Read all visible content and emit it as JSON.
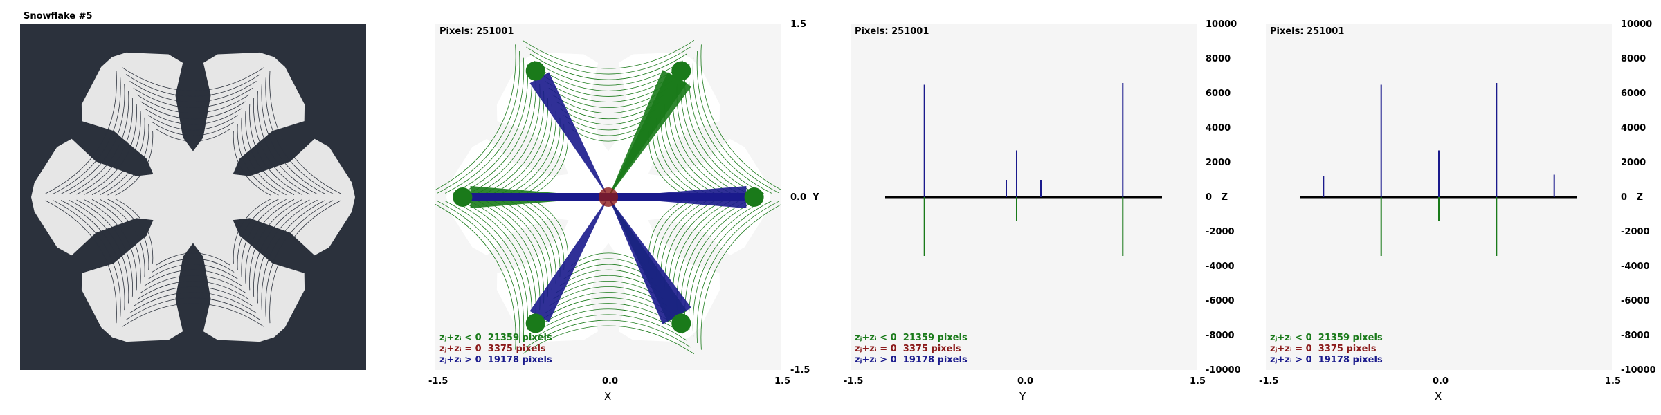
{
  "window": {
    "title": "Snowflake #5"
  },
  "colors": {
    "negative": "#1a7a1a",
    "zero": "#8b1a1a",
    "positive": "#1a1a8c",
    "background": "#2b313c",
    "panel": "#f5f5f5",
    "snowflake": "#e6e6e6"
  },
  "legend": [
    {
      "label": "zⱼ+zᵢ < 0",
      "count": "21359 pixels",
      "color": "#1a7a1a"
    },
    {
      "label": "zⱼ+zᵢ = 0",
      "count": "3375 pixels",
      "color": "#8b1a1a"
    },
    {
      "label": "zⱼ+zᵢ > 0",
      "count": "19178 pixels",
      "color": "#1a1a8c"
    }
  ],
  "panels": [
    {
      "pixels": "Pixels: 251001",
      "xaxis": "X",
      "side_label": "Y",
      "bottom_ticks": [
        "-1.5",
        "0.0",
        "1.5"
      ],
      "right_ticks": [
        "1.5",
        "0.0",
        "-1.5"
      ]
    },
    {
      "pixels": "Pixels: 251001",
      "xaxis": "Y",
      "side_label": "Z",
      "bottom_ticks": [
        "-1.5",
        "0.0",
        "1.5"
      ],
      "right_ticks": [
        "10000",
        "8000",
        "6000",
        "4000",
        "2000",
        "0",
        "-2000",
        "-4000",
        "-6000",
        "-8000",
        "-10000"
      ]
    },
    {
      "pixels": "Pixels: 251001",
      "xaxis": "X",
      "side_label": "Z",
      "bottom_ticks": [
        "-1.5",
        "0.0",
        "1.5"
      ],
      "right_ticks": [
        "10000",
        "8000",
        "6000",
        "4000",
        "2000",
        "0",
        "-2000",
        "-4000",
        "-6000",
        "-8000",
        "-10000"
      ]
    }
  ],
  "chart_data": [
    {
      "type": "scatter",
      "xlim": [
        -1.5,
        1.5
      ],
      "ylim": [
        -1.5,
        1.5
      ]
    },
    {
      "type": "line",
      "xlim": [
        -1.5,
        1.5
      ],
      "ylim": [
        -10000,
        10000
      ],
      "series": [
        {
          "values": [
            [
              -0.86,
              6500
            ],
            [
              -0.06,
              2700
            ],
            [
              0.86,
              6600
            ],
            [
              -0.15,
              1000
            ],
            [
              0.15,
              1000
            ]
          ]
        },
        {
          "values": [
            [
              -0.86,
              -3400
            ],
            [
              -0.06,
              -1400
            ],
            [
              0.86,
              -3400
            ]
          ]
        }
      ]
    },
    {
      "type": "line",
      "xlim": [
        -1.5,
        1.5
      ],
      "ylim": [
        -10000,
        10000
      ],
      "series": [
        {
          "values": [
            [
              -0.5,
              6500
            ],
            [
              0.0,
              2700
            ],
            [
              0.5,
              6600
            ],
            [
              -1.0,
              1200
            ],
            [
              1.0,
              1300
            ]
          ]
        },
        {
          "values": [
            [
              -0.5,
              -3400
            ],
            [
              0.0,
              -1400
            ],
            [
              0.5,
              -3400
            ]
          ]
        }
      ]
    }
  ]
}
